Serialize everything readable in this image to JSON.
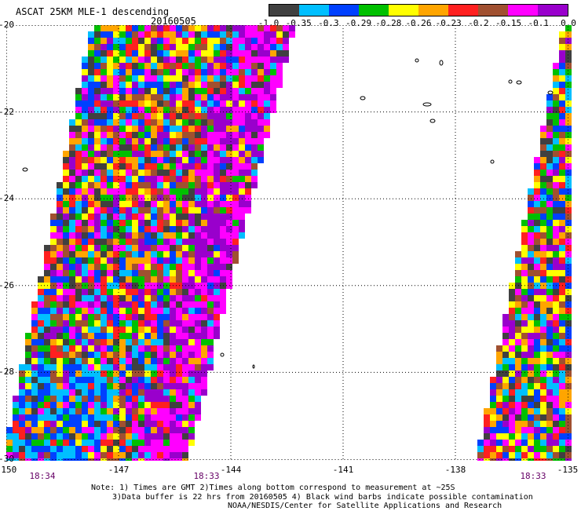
{
  "header": {
    "title": "ASCAT 25KM MLE-1 descending",
    "date": "20160505"
  },
  "colorbar": {
    "colors": [
      "#404040",
      "#00bfff",
      "#0040ff",
      "#00c000",
      "#ffff00",
      "#ffa500",
      "#ff2020",
      "#a05030",
      "#ff00ff",
      "#9900cc"
    ],
    "labels": [
      "-1.0",
      "-0.35",
      "-0.3",
      "-0.29",
      "-0.28",
      "-0.26",
      "-0.23",
      "-0.2",
      "-0.15",
      "-0.1",
      "0.0"
    ]
  },
  "axes": {
    "lat_labels": [
      "-20",
      "-22",
      "-24",
      "-26",
      "-28",
      "-30"
    ],
    "lon_labels": [
      "-150",
      "-147",
      "-144",
      "-141",
      "-138",
      "-135"
    ],
    "lat_range": [
      -20,
      -30
    ],
    "lon_range": [
      -150,
      -135
    ]
  },
  "pass_times": [
    "18:34",
    "18:33",
    "18:33"
  ],
  "notes": {
    "line1": "Note: 1) Times are GMT 2)Times along bottom correspond to measurement at ~25S",
    "line2": "3)Data buffer is 22 hrs from 20160505 4) Black wind barbs indicate possible contamination",
    "line3": "NOAA/NESDIS/Center for Satellite Applications and Research"
  },
  "style": {
    "grid": "dotted",
    "coastline_color": "#000000"
  }
}
